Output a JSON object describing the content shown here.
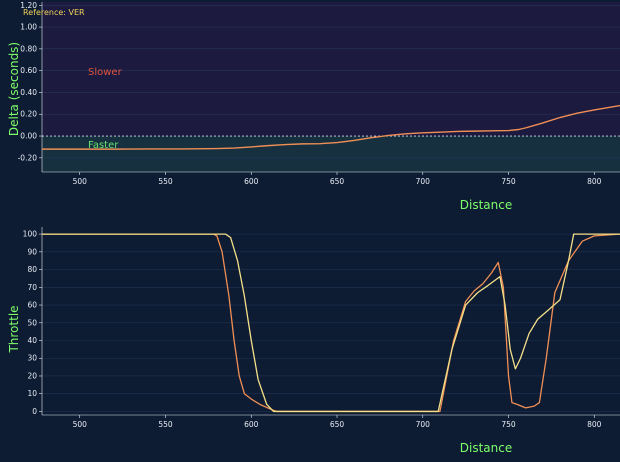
{
  "chart_data": [
    {
      "type": "line",
      "title": "",
      "annotation_reference": "Reference: VER",
      "annotation_slower": "Slower",
      "annotation_faster": "Faster",
      "xlabel": "Distance",
      "ylabel": "Delta (seconds)",
      "xlim": [
        478,
        815
      ],
      "ylim": [
        -0.33,
        1.23
      ],
      "xticks": [
        500,
        550,
        600,
        650,
        700,
        750,
        800
      ],
      "yticks": [
        -0.2,
        0.0,
        0.2,
        0.4,
        0.6,
        0.8,
        1.0,
        1.2
      ],
      "ytick_labels": [
        "-0.20",
        "0.00",
        "0.20",
        "0.40",
        "0.60",
        "0.80",
        "1.00",
        "1.20"
      ],
      "grid": true,
      "zero_line": true,
      "regions": [
        {
          "name": "slower",
          "from": 0.0,
          "to": 1.23,
          "color": "#1c1a3e"
        },
        {
          "name": "faster",
          "from": -0.33,
          "to": 0.0,
          "color": "#173040"
        }
      ],
      "colors": {
        "line": "#f08f55",
        "grid": "#24365a",
        "zero": "#d7dde8"
      },
      "series": [
        {
          "x": [
            478,
            500,
            520,
            540,
            560,
            580,
            590,
            600,
            610,
            620,
            630,
            640,
            650,
            660,
            670,
            680,
            690,
            700,
            710,
            720,
            730,
            740,
            750,
            756,
            760,
            770,
            780,
            790,
            800,
            815
          ],
          "values": [
            -0.12,
            -0.12,
            -0.12,
            -0.118,
            -0.118,
            -0.115,
            -0.11,
            -0.1,
            -0.088,
            -0.078,
            -0.072,
            -0.07,
            -0.06,
            -0.04,
            -0.015,
            0.005,
            0.02,
            0.03,
            0.035,
            0.042,
            0.045,
            0.048,
            0.05,
            0.06,
            0.075,
            0.12,
            0.17,
            0.21,
            0.24,
            0.28
          ]
        }
      ]
    },
    {
      "type": "line",
      "title": "",
      "xlabel": "Distance",
      "ylabel": "Throttle",
      "xlim": [
        478,
        815
      ],
      "ylim": [
        -2,
        104
      ],
      "xticks": [
        500,
        550,
        600,
        650,
        700,
        750,
        800
      ],
      "yticks": [
        0,
        10,
        20,
        30,
        40,
        50,
        60,
        70,
        80,
        90,
        100
      ],
      "grid": true,
      "colors": {
        "grid": "#1f3354"
      },
      "series": [
        {
          "color": "#f08f55",
          "x": [
            478,
            578,
            580,
            583,
            587,
            590,
            593,
            596,
            600,
            605,
            612,
            615,
            700,
            710,
            718,
            725,
            730,
            735,
            740,
            744,
            747,
            750,
            752,
            755,
            760,
            765,
            768,
            772,
            777,
            785,
            793,
            800,
            815
          ],
          "values": [
            100,
            100,
            99,
            90,
            65,
            40,
            20,
            10,
            7,
            4,
            1,
            0,
            0,
            0,
            40,
            62,
            68,
            72,
            78,
            84,
            70,
            20,
            5,
            4,
            2,
            3,
            5,
            30,
            67,
            85,
            96,
            99,
            100
          ]
        },
        {
          "color": "#f3e088",
          "x": [
            478,
            585,
            588,
            592,
            596,
            600,
            604,
            609,
            613,
            700,
            709,
            717,
            725,
            732,
            738,
            745,
            748,
            751,
            754,
            757,
            762,
            767,
            773,
            780,
            785,
            788,
            815
          ],
          "values": [
            100,
            100,
            98,
            85,
            65,
            40,
            18,
            4,
            0,
            0,
            0,
            35,
            60,
            67,
            71,
            76,
            60,
            35,
            24,
            30,
            44,
            52,
            57,
            63,
            85,
            100,
            100
          ]
        }
      ]
    }
  ]
}
